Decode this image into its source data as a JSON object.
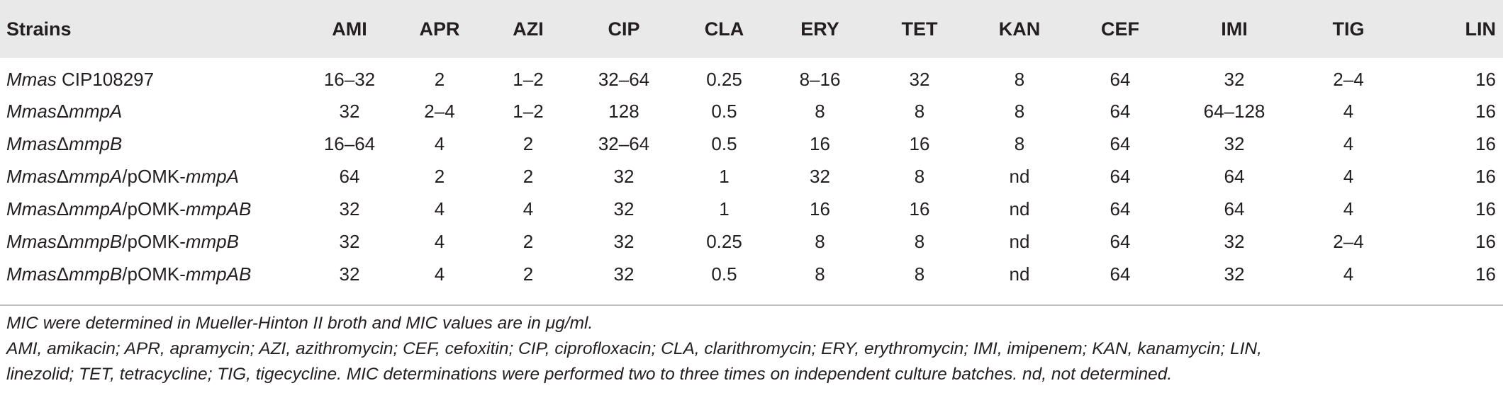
{
  "table": {
    "headers": [
      "Strains",
      "AMI",
      "APR",
      "AZI",
      "CIP",
      "CLA",
      "ERY",
      "TET",
      "KAN",
      "CEF",
      "IMI",
      "TIG",
      "LIN"
    ],
    "rows": [
      {
        "strain": {
          "italic": "Mmas",
          "rest": " CIP108297",
          "plasmid": ""
        },
        "values": [
          "16–32",
          "2",
          "1–2",
          "32–64",
          "0.25",
          "8–16",
          "32",
          "8",
          "64",
          "32",
          "2–4",
          "16"
        ]
      },
      {
        "strain": {
          "italic": "Mmas",
          "rest": "Δ",
          "gene": "mmpA",
          "plasmid": ""
        },
        "values": [
          "32",
          "2–4",
          "1–2",
          "128",
          "0.5",
          "8",
          "8",
          "8",
          "64",
          "64–128",
          "4",
          "16"
        ]
      },
      {
        "strain": {
          "italic": "Mmas",
          "rest": "Δ",
          "gene": "mmpB",
          "plasmid": ""
        },
        "values": [
          "16–64",
          "4",
          "2",
          "32–64",
          "0.5",
          "16",
          "16",
          "8",
          "64",
          "32",
          "4",
          "16"
        ]
      },
      {
        "strain": {
          "italic": "Mmas",
          "rest": "Δ",
          "gene": "mmpA",
          "plasmid": "/pOMK-",
          "pgene": "mmpA"
        },
        "values": [
          "64",
          "2",
          "2",
          "32",
          "1",
          "32",
          "8",
          "nd",
          "64",
          "64",
          "4",
          "16"
        ]
      },
      {
        "strain": {
          "italic": "Mmas",
          "rest": "Δ",
          "gene": "mmpA",
          "plasmid": "/pOMK-",
          "pgene": "mmpAB"
        },
        "values": [
          "32",
          "4",
          "4",
          "32",
          "1",
          "16",
          "16",
          "nd",
          "64",
          "64",
          "4",
          "16"
        ]
      },
      {
        "strain": {
          "italic": "Mmas",
          "rest": "Δ",
          "gene": "mmpB",
          "plasmid": "/pOMK-",
          "pgene": "mmpB"
        },
        "values": [
          "32",
          "4",
          "2",
          "32",
          "0.25",
          "8",
          "8",
          "nd",
          "64",
          "32",
          "2–4",
          "16"
        ]
      },
      {
        "strain": {
          "italic": "Mmas",
          "rest": "Δ",
          "gene": "mmpB",
          "plasmid": "/pOMK-",
          "pgene": "mmpAB"
        },
        "values": [
          "32",
          "4",
          "2",
          "32",
          "0.5",
          "8",
          "8",
          "nd",
          "64",
          "32",
          "4",
          "16"
        ]
      }
    ]
  },
  "footnotes": {
    "line1": "MIC were determined in Mueller-Hinton II broth and MIC values are in μg/ml.",
    "line2": "AMI, amikacin; APR, apramycin; AZI, azithromycin; CEF, cefoxitin; CIP, ciprofloxacin; CLA, clarithromycin; ERY, erythromycin; IMI, imipenem; KAN, kanamycin; LIN,",
    "line3": "linezolid; TET, tetracycline; TIG, tigecycline. MIC determinations were performed two to three times on independent culture batches. nd, not determined."
  }
}
